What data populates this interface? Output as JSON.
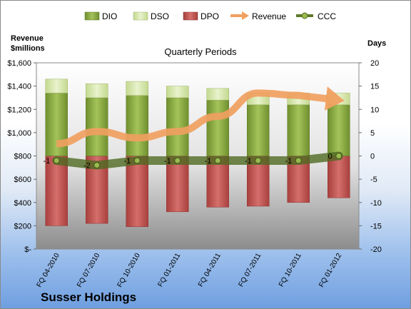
{
  "chart_data": {
    "type": "bar",
    "title": "Quarterly Periods",
    "company": "Susser Holdings",
    "left_axis_label": [
      "Revenue",
      "$millions"
    ],
    "right_axis_label": "Days",
    "categories": [
      "FQ 04-2010",
      "FQ 07-2010",
      "FQ 10-2010",
      "FQ 01-2011",
      "FQ 04-2011",
      "FQ 07-2011",
      "FQ 10-2011",
      "FQ 01-2012"
    ],
    "left_ticks": [
      "$-",
      "$200",
      "$400",
      "$600",
      "$800",
      "$1,000",
      "$1,200",
      "$1,400",
      "$1,600"
    ],
    "right_ticks": [
      "-20",
      "-15",
      "-10",
      "-5",
      "0",
      "5",
      "10",
      "15",
      "20"
    ],
    "left_ylim": [
      0,
      1600
    ],
    "right_ylim": [
      -20,
      20
    ],
    "legend_position": "top",
    "series": [
      {
        "name": "DIO",
        "kind": "stacked-bar-positive",
        "axis": "days",
        "color": "#7a9a35",
        "values": [
          13.5,
          12.5,
          13.0,
          12.5,
          12.0,
          11.0,
          11.0,
          11.0
        ]
      },
      {
        "name": "DSO",
        "kind": "stacked-bar-positive",
        "axis": "days",
        "color": "#cfe0a0",
        "values": [
          3.0,
          3.0,
          3.0,
          2.5,
          2.5,
          2.5,
          2.5,
          2.5
        ]
      },
      {
        "name": "DPO",
        "kind": "bar-negative",
        "axis": "days",
        "color": "#c0504d",
        "values": [
          -15.0,
          -14.5,
          -15.2,
          -12.0,
          -11.0,
          -10.8,
          -10.0,
          -9.0
        ]
      },
      {
        "name": "Revenue",
        "kind": "arrow-line",
        "axis": "revenue",
        "color": "#f0a060",
        "values": [
          905,
          1010,
          955,
          1010,
          1140,
          1340,
          1320,
          1280
        ]
      },
      {
        "name": "CCC",
        "kind": "line-markers",
        "axis": "days",
        "color": "#5e7a2a",
        "values": [
          -1,
          -2,
          -1,
          -1,
          -1,
          -1,
          -1,
          0
        ]
      }
    ],
    "ccc_labels": [
      "-1",
      "-2",
      "-1",
      "-1",
      "-1",
      "-1",
      "-1",
      "0"
    ]
  }
}
